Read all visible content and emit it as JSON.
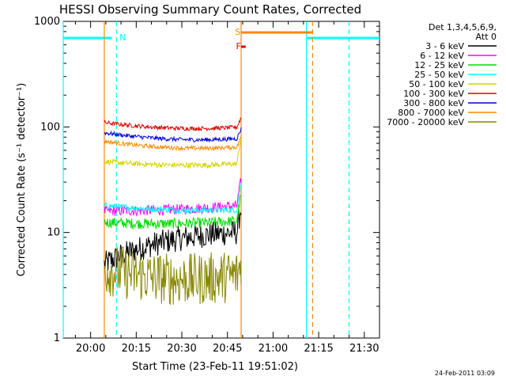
{
  "chart_data": {
    "type": "line",
    "title": "HESSI Observing Summary Count Rates, Corrected",
    "xlabel": "Start Time (23-Feb-11 19:51:02)",
    "ylabel": "Corrected Count Rate (s⁻¹ detector⁻¹)",
    "yscale": "log",
    "ylim": [
      1,
      1000
    ],
    "xlim_minutes_after_20_00": [
      -9,
      95
    ],
    "x_ticks": [
      {
        "label": "20:00",
        "t": 0
      },
      {
        "label": "20:15",
        "t": 15
      },
      {
        "label": "20:30",
        "t": 30
      },
      {
        "label": "20:45",
        "t": 45
      },
      {
        "label": "21:00",
        "t": 60
      },
      {
        "label": "21:15",
        "t": 75
      },
      {
        "label": "21:30",
        "t": 90
      }
    ],
    "y_ticks": [
      {
        "label": "1",
        "v": 1
      },
      {
        "label": "10",
        "v": 10
      },
      {
        "label": "100",
        "v": 100
      },
      {
        "label": "1000",
        "v": 1000
      }
    ],
    "legend_header": [
      "Det 1,3,4,5,6,9,",
      "Att 0"
    ],
    "legend_placement": "right",
    "data_start_minutes_after_20_00": 4.5,
    "data_end_minutes_after_20_00": 49.5,
    "series": [
      {
        "name": "3 - 6 keV",
        "color": "#000000",
        "start": 5.0,
        "mid": 9.5,
        "end": 10.0,
        "noise": 0.12
      },
      {
        "name": "6 - 12 keV",
        "color": "#ff00ff",
        "start": 16.0,
        "mid": 16.0,
        "end": 18.0,
        "noise": 0.05
      },
      {
        "name": "12 - 25 keV",
        "color": "#00dd00",
        "start": 12.5,
        "mid": 11.5,
        "end": 13.0,
        "noise": 0.05
      },
      {
        "name": "25 - 50 keV",
        "color": "#00ffff",
        "start": 18.0,
        "mid": 15.5,
        "end": 16.5,
        "noise": 0.03
      },
      {
        "name": "50 - 100 keV",
        "color": "#d4d400",
        "start": 47.0,
        "mid": 41.0,
        "end": 45.0,
        "noise": 0.025
      },
      {
        "name": "100 - 300 keV",
        "color": "#e00000",
        "start": 110.0,
        "mid": 90.0,
        "end": 100.0,
        "noise": 0.02
      },
      {
        "name": "300 - 800 keV",
        "color": "#0000e0",
        "start": 88.0,
        "mid": 70.0,
        "end": 78.0,
        "noise": 0.02
      },
      {
        "name": "800 - 7000 keV",
        "color": "#ff8800",
        "start": 73.0,
        "mid": 58.0,
        "end": 65.0,
        "noise": 0.02
      },
      {
        "name": "7000 - 20000 keV",
        "color": "#888800",
        "start": 4.5,
        "mid": 3.0,
        "end": 4.0,
        "noise": 0.25
      }
    ],
    "flag_markers": [
      {
        "label": "N",
        "color": "#00ffff"
      },
      {
        "label": "S",
        "color": "#ff8800"
      },
      {
        "label": "F",
        "color": "#e00000"
      }
    ]
  },
  "footer_stamp": "24-Feb-2011 03:09"
}
